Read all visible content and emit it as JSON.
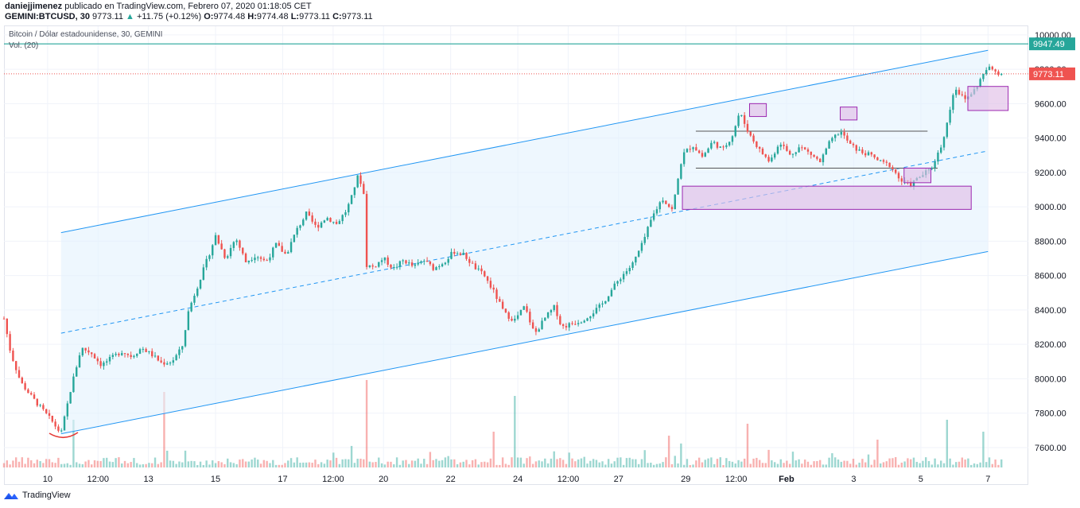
{
  "header": {
    "author": "daniejjimenez",
    "published": "publicado en TradingView.com, Febrero 07, 2020 01:18:05 CET",
    "symbol": "GEMINI:BTCUSD, 30",
    "last": "9773.11",
    "up_arrow": "▲",
    "change": "+11.75 (+0.12%)",
    "o_label": "O:",
    "o_value": "9774.48",
    "h_label": "H:",
    "h_value": "9774.48",
    "l_label": "L:",
    "l_value": "9773.11",
    "c_label": "C:",
    "c_value": "9773.11"
  },
  "legend": {
    "title": "Bitcoin / Dólar estadounidense, 30, GEMINI",
    "volume": "Vol. (20)"
  },
  "footer": {
    "brand": "TradingView",
    "logo_icon": "tradingview-logo-icon"
  },
  "colors": {
    "up": "#26a69a",
    "down": "#ef5350",
    "channel": "#2196f3",
    "channel_fill": "#e3f2fd",
    "zone": "#9c27b0",
    "zone_fill": "#e1bee7",
    "resistance": "#26a69a",
    "price_line": "#ef5350",
    "grid": "#f0f3fa"
  },
  "chart_data": {
    "type": "candlestick",
    "y_axis": {
      "ylim": [
        7475,
        10050
      ],
      "ticks": [
        "10000.00",
        "9800.00",
        "9600.00",
        "9400.00",
        "9200.00",
        "9000.00",
        "8800.00",
        "8600.00",
        "8400.00",
        "8200.00",
        "8000.00",
        "7800.00",
        "7600.00"
      ],
      "tick_values": [
        10000,
        9800,
        9600,
        9400,
        9200,
        9000,
        8800,
        8600,
        8400,
        8200,
        8000,
        7800,
        7600
      ]
    },
    "x_axis": {
      "xlim": [
        0,
        30.5
      ],
      "ticks": [
        "10",
        "12:00",
        "13",
        "15",
        "17",
        "12:00",
        "20",
        "22",
        "24",
        "12:00",
        "27",
        "29",
        "12:00",
        "Feb",
        "3",
        "5",
        "7"
      ],
      "tick_positions": [
        1.3,
        2.8,
        4.3,
        6.3,
        8.3,
        9.8,
        11.3,
        13.3,
        15.3,
        16.8,
        18.3,
        20.3,
        21.8,
        23.3,
        25.3,
        27.3,
        29.3
      ]
    },
    "grid": true,
    "price_labels": [
      {
        "value": 9947.49,
        "text": "9947.49",
        "color": "#26a69a"
      },
      {
        "value": 9773.11,
        "text": "9773.11",
        "color": "#ef5350"
      }
    ],
    "price_path": [
      [
        0.0,
        8350
      ],
      [
        0.2,
        8150
      ],
      [
        0.5,
        7980
      ],
      [
        0.8,
        7900
      ],
      [
        1.1,
        7830
      ],
      [
        1.4,
        7760
      ],
      [
        1.7,
        7680
      ],
      [
        2.0,
        7950
      ],
      [
        2.3,
        8180
      ],
      [
        2.6,
        8150
      ],
      [
        2.9,
        8080
      ],
      [
        3.2,
        8120
      ],
      [
        3.5,
        8160
      ],
      [
        3.8,
        8130
      ],
      [
        4.1,
        8180
      ],
      [
        4.4,
        8140
      ],
      [
        4.7,
        8090
      ],
      [
        5.0,
        8100
      ],
      [
        5.3,
        8180
      ],
      [
        5.5,
        8400
      ],
      [
        5.8,
        8560
      ],
      [
        6.1,
        8720
      ],
      [
        6.3,
        8830
      ],
      [
        6.6,
        8700
      ],
      [
        6.9,
        8820
      ],
      [
        7.2,
        8680
      ],
      [
        7.5,
        8720
      ],
      [
        7.8,
        8680
      ],
      [
        8.1,
        8780
      ],
      [
        8.4,
        8720
      ],
      [
        8.7,
        8860
      ],
      [
        9.0,
        8960
      ],
      [
        9.3,
        8880
      ],
      [
        9.6,
        8940
      ],
      [
        9.9,
        8900
      ],
      [
        10.2,
        8980
      ],
      [
        10.4,
        9080
      ],
      [
        10.5,
        9180
      ],
      [
        10.7,
        9120
      ],
      [
        10.8,
        8660
      ],
      [
        11.0,
        8650
      ],
      [
        11.3,
        8700
      ],
      [
        11.6,
        8640
      ],
      [
        11.9,
        8690
      ],
      [
        12.2,
        8650
      ],
      [
        12.5,
        8690
      ],
      [
        12.8,
        8640
      ],
      [
        13.1,
        8680
      ],
      [
        13.4,
        8740
      ],
      [
        13.7,
        8720
      ],
      [
        14.0,
        8650
      ],
      [
        14.3,
        8600
      ],
      [
        14.6,
        8500
      ],
      [
        14.9,
        8380
      ],
      [
        15.2,
        8340
      ],
      [
        15.5,
        8420
      ],
      [
        15.8,
        8260
      ],
      [
        16.1,
        8350
      ],
      [
        16.4,
        8420
      ],
      [
        16.6,
        8300
      ],
      [
        16.9,
        8320
      ],
      [
        17.2,
        8340
      ],
      [
        17.5,
        8380
      ],
      [
        17.8,
        8430
      ],
      [
        18.1,
        8520
      ],
      [
        18.4,
        8600
      ],
      [
        18.7,
        8660
      ],
      [
        19.0,
        8780
      ],
      [
        19.3,
        8940
      ],
      [
        19.6,
        9050
      ],
      [
        19.9,
        8980
      ],
      [
        20.2,
        9300
      ],
      [
        20.5,
        9360
      ],
      [
        20.8,
        9290
      ],
      [
        21.1,
        9380
      ],
      [
        21.4,
        9330
      ],
      [
        21.7,
        9420
      ],
      [
        21.9,
        9550
      ],
      [
        22.2,
        9420
      ],
      [
        22.5,
        9330
      ],
      [
        22.8,
        9260
      ],
      [
        23.1,
        9380
      ],
      [
        23.4,
        9300
      ],
      [
        23.7,
        9350
      ],
      [
        24.0,
        9310
      ],
      [
        24.3,
        9260
      ],
      [
        24.6,
        9380
      ],
      [
        24.9,
        9440
      ],
      [
        25.2,
        9360
      ],
      [
        25.5,
        9320
      ],
      [
        25.8,
        9300
      ],
      [
        26.1,
        9260
      ],
      [
        26.4,
        9240
      ],
      [
        26.7,
        9150
      ],
      [
        27.0,
        9130
      ],
      [
        27.3,
        9180
      ],
      [
        27.6,
        9220
      ],
      [
        27.9,
        9350
      ],
      [
        28.1,
        9500
      ],
      [
        28.3,
        9700
      ],
      [
        28.6,
        9620
      ],
      [
        28.9,
        9680
      ],
      [
        29.1,
        9750
      ],
      [
        29.3,
        9810
      ],
      [
        29.5,
        9790
      ],
      [
        29.7,
        9773
      ]
    ],
    "channel": {
      "upper": [
        [
          1.7,
          8850
        ],
        [
          29.3,
          9910
        ]
      ],
      "lower": [
        [
          1.7,
          7680
        ],
        [
          29.3,
          8740
        ]
      ],
      "mid": [
        [
          1.7,
          8265
        ],
        [
          29.3,
          9325
        ]
      ]
    },
    "horizontal_lines": {
      "resistance": 9947.49,
      "price_line": 9773.11,
      "range_top": 9440,
      "range_bottom": 9225
    },
    "zones": [
      {
        "x": [
          20.2,
          28.8
        ],
        "y": [
          8985,
          9120
        ]
      },
      {
        "x": [
          28.7,
          29.9
        ],
        "y": [
          9560,
          9700
        ]
      },
      {
        "x": [
          22.2,
          22.7
        ],
        "y": [
          9525,
          9600
        ]
      },
      {
        "x": [
          24.9,
          25.4
        ],
        "y": [
          9505,
          9580
        ]
      },
      {
        "x": [
          26.8,
          27.6
        ],
        "y": [
          9140,
          9225
        ]
      }
    ],
    "volume_spikes": [
      [
        2.1,
        60
      ],
      [
        4.8,
        95
      ],
      [
        10.8,
        110
      ],
      [
        14.6,
        45
      ],
      [
        15.2,
        90
      ],
      [
        19.8,
        40
      ],
      [
        22.1,
        55
      ],
      [
        26.0,
        35
      ],
      [
        28.1,
        60
      ],
      [
        29.2,
        45
      ]
    ]
  }
}
